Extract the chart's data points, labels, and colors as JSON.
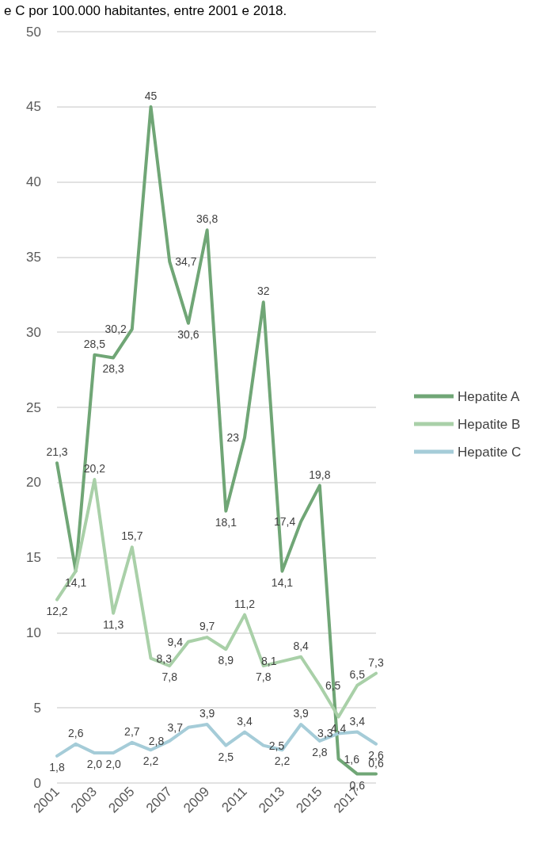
{
  "chart_data": {
    "type": "line",
    "title": "e C por 100.000 habitantes, entre 2001 e 2018.",
    "categories": [
      "2001",
      null,
      "2003",
      null,
      "2005",
      null,
      "2007",
      null,
      "2009",
      null,
      "2011",
      null,
      "2013",
      null,
      "2015",
      null,
      "2017",
      null
    ],
    "series": [
      {
        "name": "Hepatite A",
        "color": "#70a676",
        "values": [
          21.3,
          14.1,
          28.5,
          28.3,
          30.2,
          45,
          34.7,
          30.6,
          36.8,
          18.1,
          23,
          32,
          14.1,
          17.4,
          19.8,
          1.6,
          0.6,
          0.6
        ],
        "value_labels": [
          "21,3",
          "14,1",
          "28,5",
          "28,3",
          "30,2",
          "45",
          "34,7",
          "30,6",
          "36,8",
          "18,1",
          "23",
          "32",
          "14,1",
          "17,4",
          "19,8",
          "1,6",
          "0,6",
          "0,6"
        ]
      },
      {
        "name": "Hepatite B",
        "color": "#a9d0a8",
        "values": [
          12.2,
          14.1,
          20.2,
          11.3,
          15.7,
          8.3,
          7.8,
          9.4,
          9.7,
          8.9,
          11.2,
          7.8,
          8.1,
          8.4,
          6.5,
          4.4,
          6.5,
          7.3
        ],
        "value_labels": [
          "12,2",
          null,
          "20,2",
          "11,3",
          "15,7",
          "8,3",
          "7,8",
          "9,4",
          "9,7",
          "8,9",
          "11,2",
          "7,8",
          "8,1",
          "8,4",
          "6,5",
          "4,4",
          "6,5",
          "7,3"
        ]
      },
      {
        "name": "Hepatite C",
        "color": "#a5ccd8",
        "values": [
          1.8,
          2.6,
          2.0,
          2.0,
          2.7,
          2.2,
          2.8,
          3.7,
          3.9,
          2.5,
          3.4,
          2.5,
          2.2,
          3.9,
          2.8,
          3.3,
          3.4,
          2.6
        ],
        "value_labels": [
          "1,8",
          "2,6",
          "2,0",
          "2,0",
          "2,7",
          "2,2",
          "2,8",
          "3,7",
          "3,9",
          "2,5",
          "3,4",
          "2,5",
          "2,2",
          "3,9",
          "2,8",
          "3,3",
          "3,4",
          "2,6"
        ]
      }
    ],
    "ylim": [
      0,
      50
    ],
    "yticks": [
      0,
      5,
      10,
      15,
      20,
      25,
      30,
      35,
      40,
      45,
      50
    ],
    "grid": "y",
    "legend": "right",
    "marker": "none",
    "line_style": "solid"
  }
}
